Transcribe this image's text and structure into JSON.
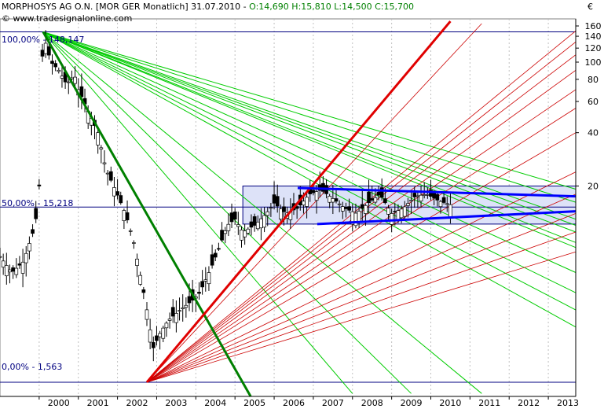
{
  "header": {
    "symbol": "MORPHOSYS AG O.N. [MOR GER  Monatlich] 31.07.2010 -",
    "ohlc": "O:14,690 H:15,810 L:14,500 C:15,700",
    "copyright": "© www.tradesignalonline.com",
    "unit": "€"
  },
  "levels": [
    {
      "label": "100,00% - 148,147",
      "value": 148.147
    },
    {
      "label": "50,00% - 15,218",
      "value": 15.218
    },
    {
      "label": "0,00% - 1,563",
      "value": 1.563
    }
  ],
  "colors": {
    "green": "#00cc00",
    "dark_green": "#008000",
    "red": "#e00000",
    "dark_red": "#cc0000",
    "blue": "#0000ff",
    "navy": "#000080",
    "box_fill": "#dde2f8"
  },
  "chart_data": {
    "type": "candlestick",
    "y_scale": "log",
    "ylim": [
      1.3,
      165
    ],
    "y_ticks": [
      160,
      140,
      120,
      100,
      80,
      60,
      40,
      20
    ],
    "x_labels": [
      "2000",
      "2001",
      "2002",
      "2003",
      "2004",
      "2005",
      "2006",
      "2007",
      "2008",
      "2009",
      "2010",
      "2011",
      "2012",
      "2013"
    ],
    "xlim": [
      1999.0,
      2013.7
    ],
    "price_points": [
      [
        1999.0,
        8.0
      ],
      [
        1999.3,
        6.5
      ],
      [
        1999.6,
        7.5
      ],
      [
        1999.9,
        12.0
      ],
      [
        2000.0,
        20.0
      ],
      [
        2000.05,
        60.0
      ],
      [
        2000.1,
        145.0
      ],
      [
        2000.2,
        120.0
      ],
      [
        2000.3,
        100.0
      ],
      [
        2000.5,
        90.0
      ],
      [
        2000.7,
        75.0
      ],
      [
        2000.9,
        85.0
      ],
      [
        2001.0,
        70.0
      ],
      [
        2001.3,
        50.0
      ],
      [
        2001.5,
        40.0
      ],
      [
        2001.7,
        25.0
      ],
      [
        2001.9,
        20.0
      ],
      [
        2002.2,
        14.0
      ],
      [
        2002.4,
        10.0
      ],
      [
        2002.6,
        6.0
      ],
      [
        2002.8,
        3.5
      ],
      [
        2002.9,
        2.4
      ],
      [
        2003.1,
        3.0
      ],
      [
        2003.3,
        3.5
      ],
      [
        2003.6,
        4.0
      ],
      [
        2003.9,
        4.5
      ],
      [
        2004.1,
        5.0
      ],
      [
        2004.4,
        7.0
      ],
      [
        2004.6,
        9.0
      ],
      [
        2004.8,
        12.0
      ],
      [
        2005.0,
        13.0
      ],
      [
        2005.2,
        11.0
      ],
      [
        2005.5,
        12.0
      ],
      [
        2005.8,
        14.0
      ],
      [
        2006.0,
        16.0
      ],
      [
        2006.3,
        14.0
      ],
      [
        2006.6,
        15.0
      ],
      [
        2006.9,
        18.0
      ],
      [
        2007.2,
        19.0
      ],
      [
        2007.5,
        17.0
      ],
      [
        2007.8,
        15.0
      ],
      [
        2008.1,
        14.0
      ],
      [
        2008.4,
        16.0
      ],
      [
        2008.7,
        18.0
      ],
      [
        2009.0,
        14.0
      ],
      [
        2009.3,
        15.0
      ],
      [
        2009.6,
        17.5
      ],
      [
        2009.9,
        18.0
      ],
      [
        2010.2,
        16.5
      ],
      [
        2010.5,
        15.7
      ]
    ],
    "annotations": [
      "Fibonacci retracement 0% / 50% / 100%",
      "Fan lines from 2000 high (green)",
      "Fan lines from 2002 low (red)",
      "Trading range box 2006-2010 (blue)"
    ]
  }
}
